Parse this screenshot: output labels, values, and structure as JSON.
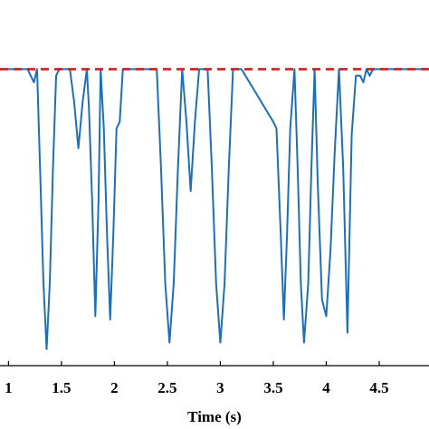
{
  "chart_data": {
    "type": "line",
    "title": "",
    "xlabel": "Time (s)",
    "ylabel": "",
    "xlim": [
      0.92,
      4.97
    ],
    "ylim": [
      0,
      1
    ],
    "x_ticks": [
      1,
      1.5,
      2,
      2.5,
      3,
      3.5,
      4,
      4.5
    ],
    "x_tick_labels": [
      "1",
      "1.5",
      "2",
      "2.5",
      "3",
      "3.5",
      "4",
      "4.5"
    ],
    "grid": false,
    "series": [
      {
        "style": "dashed",
        "color": "#cc1f1f",
        "x": [
          0.92,
          4.97
        ],
        "y": [
          0.9,
          0.9
        ]
      },
      {
        "style": "solid",
        "color": "#1f6fb4",
        "x": [
          0.92,
          1.18,
          1.21,
          1.24,
          1.27,
          1.3,
          1.33,
          1.36,
          1.39,
          1.42,
          1.45,
          1.48,
          1.58,
          1.62,
          1.66,
          1.7,
          1.74,
          1.76,
          1.79,
          1.82,
          1.85,
          1.87,
          1.9,
          1.93,
          1.96,
          1.99,
          2.02,
          2.05,
          2.08,
          2.12,
          2.4,
          2.44,
          2.48,
          2.52,
          2.56,
          2.6,
          2.64,
          2.68,
          2.72,
          2.76,
          2.8,
          2.84,
          2.88,
          2.92,
          2.96,
          3.0,
          3.04,
          3.08,
          3.12,
          3.16,
          3.2,
          3.5,
          3.53,
          3.57,
          3.6,
          3.63,
          3.66,
          3.7,
          3.73,
          3.76,
          3.79,
          3.83,
          3.86,
          3.89,
          3.92,
          3.96,
          4.0,
          4.04,
          4.08,
          4.12,
          4.16,
          4.2,
          4.24,
          4.28,
          4.32,
          4.35,
          4.38,
          4.41,
          4.44,
          4.97
        ],
        "y": [
          0.9,
          0.9,
          0.88,
          0.86,
          0.9,
          0.58,
          0.25,
          0.05,
          0.25,
          0.6,
          0.88,
          0.9,
          0.9,
          0.8,
          0.66,
          0.8,
          0.9,
          0.78,
          0.5,
          0.15,
          0.5,
          0.9,
          0.72,
          0.4,
          0.14,
          0.4,
          0.72,
          0.74,
          0.9,
          0.9,
          0.9,
          0.6,
          0.25,
          0.07,
          0.25,
          0.6,
          0.9,
          0.74,
          0.53,
          0.74,
          0.9,
          0.9,
          0.9,
          0.6,
          0.25,
          0.07,
          0.25,
          0.6,
          0.9,
          0.9,
          0.9,
          0.74,
          0.72,
          0.4,
          0.14,
          0.4,
          0.72,
          0.9,
          0.6,
          0.25,
          0.07,
          0.25,
          0.6,
          0.9,
          0.55,
          0.2,
          0.15,
          0.35,
          0.65,
          0.9,
          0.6,
          0.1,
          0.7,
          0.88,
          0.88,
          0.86,
          0.9,
          0.88,
          0.9,
          0.9
        ]
      }
    ]
  }
}
